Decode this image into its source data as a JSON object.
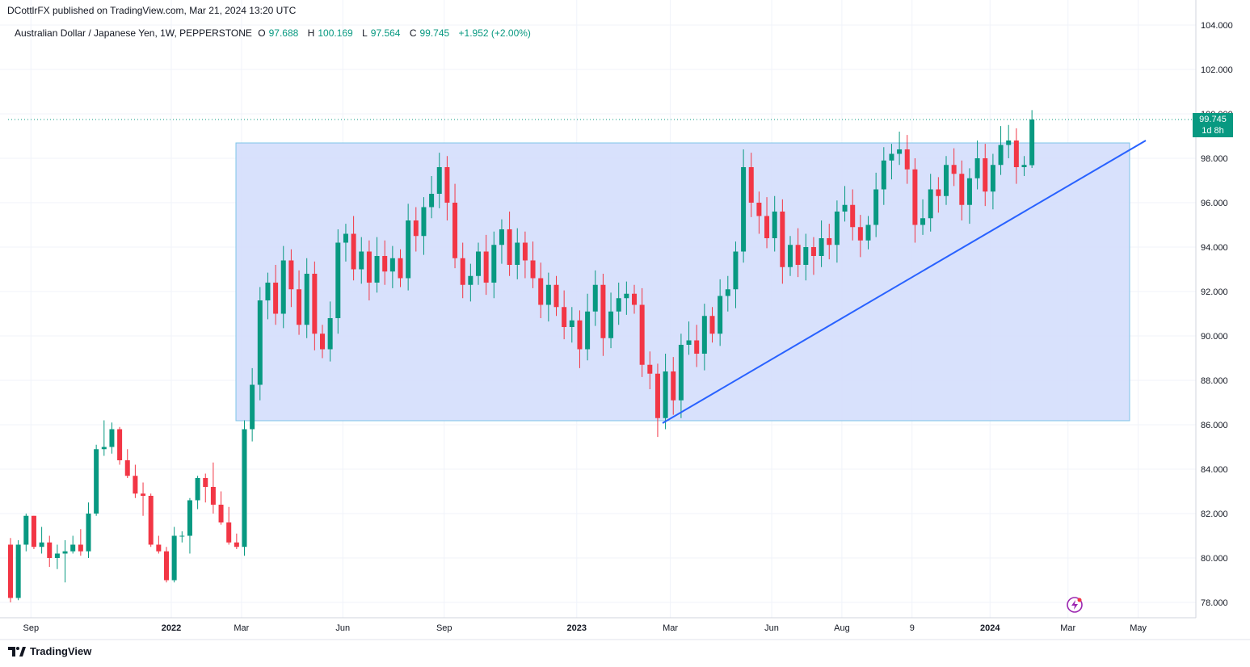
{
  "header": {
    "published": "DCottlrFX published on TradingView.com, Mar 21, 2024 13:20 UTC"
  },
  "legend": {
    "symbol": "Australian Dollar / Japanese Yen, 1W, PEPPERSTONE",
    "o_label": "O",
    "o_value": "97.688",
    "h_label": "H",
    "h_value": "100.169",
    "l_label": "L",
    "l_value": "97.564",
    "c_label": "C",
    "c_value": "99.745",
    "change": "+1.952 (+2.00%)"
  },
  "price_tag": {
    "price": "99.745",
    "countdown": "1d 8h"
  },
  "footer": {
    "brand": "TradingView"
  },
  "colors": {
    "up": "#089981",
    "down": "#f23645",
    "box_fill": "#d4defc",
    "box_border": "#7ec4e8",
    "trendline": "#2962ff",
    "grid": "#f0f3fa"
  },
  "chart_data": {
    "type": "candlestick",
    "title": "Australian Dollar / Japanese Yen, 1W, PEPPERSTONE",
    "ylim": [
      77.2,
      104.3
    ],
    "y_ticks": [
      "104.000",
      "102.000",
      "100.000",
      "98.000",
      "96.000",
      "94.000",
      "92.000",
      "90.000",
      "88.000",
      "86.000",
      "84.000",
      "82.000",
      "80.000",
      "78.000"
    ],
    "y_tick_values": [
      104,
      102,
      100,
      98,
      96,
      94,
      92,
      90,
      88,
      86,
      84,
      82,
      80,
      78
    ],
    "x_labels": [
      "Sep",
      "2022",
      "Mar",
      "Jun",
      "Sep",
      "2023",
      "Mar",
      "Jun",
      "Aug",
      "9",
      "2024",
      "Mar",
      "May"
    ],
    "x_label_weeks": [
      2,
      20,
      29,
      42,
      55,
      72,
      84,
      97,
      106,
      115,
      125,
      135,
      144
    ],
    "last_price": 99.745,
    "candles": [
      [
        80.6,
        78.2,
        80.9,
        78.0
      ],
      [
        78.2,
        80.6,
        80.8,
        78.1
      ],
      [
        80.6,
        81.9,
        82.0,
        80.3
      ],
      [
        81.9,
        80.5,
        81.9,
        80.4
      ],
      [
        80.5,
        80.7,
        81.4,
        80.2
      ],
      [
        80.7,
        80.0,
        81.0,
        79.6
      ],
      [
        80.0,
        80.2,
        80.6,
        79.5
      ],
      [
        80.2,
        80.3,
        80.8,
        78.9
      ],
      [
        80.3,
        80.6,
        81.0,
        80.2
      ],
      [
        80.6,
        80.3,
        81.3,
        80.1
      ],
      [
        80.3,
        82.0,
        82.5,
        80.0
      ],
      [
        82.0,
        84.9,
        85.1,
        81.9
      ],
      [
        84.9,
        85.0,
        86.2,
        84.6
      ],
      [
        85.0,
        85.8,
        86.1,
        84.7
      ],
      [
        85.8,
        84.4,
        85.9,
        84.2
      ],
      [
        84.4,
        83.7,
        84.9,
        83.6
      ],
      [
        83.7,
        82.9,
        84.2,
        82.7
      ],
      [
        82.9,
        82.8,
        83.4,
        81.9
      ],
      [
        82.8,
        80.6,
        82.9,
        80.5
      ],
      [
        80.6,
        80.3,
        81.0,
        80.2
      ],
      [
        80.3,
        79.0,
        80.5,
        78.9
      ],
      [
        79.0,
        81.0,
        81.4,
        78.9
      ],
      [
        81.0,
        81.0,
        81.2,
        80.7
      ],
      [
        81.0,
        82.6,
        82.7,
        80.2
      ],
      [
        82.6,
        83.6,
        83.7,
        82.2
      ],
      [
        83.6,
        83.2,
        83.8,
        82.5
      ],
      [
        83.2,
        82.4,
        84.3,
        82.0
      ],
      [
        82.4,
        81.6,
        83.0,
        81.5
      ],
      [
        81.6,
        80.7,
        82.3,
        80.6
      ],
      [
        80.7,
        80.5,
        81.1,
        80.4
      ]
    ]
  }
}
